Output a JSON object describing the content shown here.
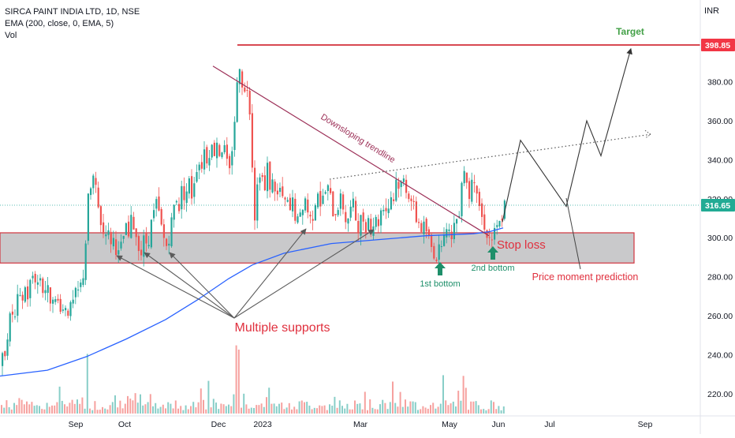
{
  "legend": {
    "title": "SIRCA PAINT INDIA LTD, 1D, NSE",
    "ema": "EMA (200, close, 0, EMA, 5)",
    "vol": "Vol"
  },
  "currency": "INR",
  "chart_data": {
    "type": "candlestick",
    "title": "SIRCA PAINT INDIA LTD, 1D, NSE",
    "x_ticks": [
      "Sep",
      "Oct",
      "Dec",
      "2023",
      "Mar",
      "May",
      "Jun",
      "Jul",
      "Sep"
    ],
    "y_ticks": [
      "220.00",
      "240.00",
      "260.00",
      "280.00",
      "300.00",
      "320.00",
      "340.00",
      "360.00",
      "380.00"
    ],
    "ylim": [
      212,
      408
    ],
    "price_labels": {
      "target": {
        "value": 398.85,
        "text": "398.85",
        "color": "#f23645"
      },
      "last": {
        "value": 316.65,
        "text": "316.65",
        "color": "#22ab94"
      }
    },
    "close_path": [
      [
        0,
        235
      ],
      [
        5,
        242
      ],
      [
        10,
        255
      ],
      [
        14,
        262
      ],
      [
        18,
        258
      ],
      [
        22,
        270
      ],
      [
        26,
        265
      ],
      [
        30,
        275
      ],
      [
        34,
        270
      ],
      [
        38,
        278
      ],
      [
        42,
        282
      ],
      [
        46,
        276
      ],
      [
        50,
        280
      ],
      [
        54,
        272
      ],
      [
        58,
        275
      ],
      [
        62,
        268
      ],
      [
        66,
        272
      ],
      [
        70,
        265
      ],
      [
        74,
        268
      ],
      [
        78,
        262
      ],
      [
        82,
        266
      ],
      [
        86,
        262
      ],
      [
        90,
        264
      ],
      [
        94,
        270
      ],
      [
        98,
        272
      ],
      [
        102,
        276
      ],
      [
        106,
        285
      ],
      [
        110,
        318
      ],
      [
        114,
        325
      ],
      [
        118,
        332
      ],
      [
        122,
        318
      ],
      [
        126,
        310
      ],
      [
        130,
        302
      ],
      [
        134,
        306
      ],
      [
        138,
        298
      ],
      [
        142,
        300
      ],
      [
        146,
        295
      ],
      [
        150,
        290
      ],
      [
        154,
        298
      ],
      [
        158,
        305
      ],
      [
        162,
        300
      ],
      [
        166,
        310
      ],
      [
        170,
        304
      ],
      [
        174,
        298
      ],
      [
        178,
        292
      ],
      [
        182,
        300
      ],
      [
        186,
        296
      ],
      [
        190,
        306
      ],
      [
        194,
        312
      ],
      [
        198,
        318
      ],
      [
        202,
        308
      ],
      [
        206,
        300
      ],
      [
        210,
        296
      ],
      [
        214,
        302
      ],
      [
        218,
        312
      ],
      [
        222,
        322
      ],
      [
        226,
        316
      ],
      [
        230,
        326
      ],
      [
        234,
        320
      ],
      [
        238,
        330
      ],
      [
        242,
        322
      ],
      [
        246,
        332
      ],
      [
        250,
        340
      ],
      [
        254,
        336
      ],
      [
        258,
        345
      ],
      [
        262,
        340
      ],
      [
        266,
        348
      ],
      [
        270,
        343
      ],
      [
        274,
        350
      ],
      [
        278,
        342
      ],
      [
        282,
        349
      ],
      [
        286,
        338
      ],
      [
        290,
        333
      ],
      [
        294,
        350
      ],
      [
        298,
        368
      ],
      [
        302,
        392
      ],
      [
        306,
        380
      ],
      [
        310,
        372
      ],
      [
        314,
        382
      ],
      [
        318,
        345
      ],
      [
        322,
        312
      ],
      [
        326,
        330
      ],
      [
        330,
        338
      ],
      [
        334,
        320
      ],
      [
        338,
        336
      ],
      [
        342,
        325
      ],
      [
        346,
        330
      ],
      [
        350,
        320
      ],
      [
        354,
        325
      ],
      [
        358,
        316
      ],
      [
        362,
        320
      ],
      [
        366,
        312
      ],
      [
        370,
        318
      ],
      [
        374,
        310
      ],
      [
        378,
        306
      ],
      [
        382,
        316
      ],
      [
        386,
        320
      ],
      [
        390,
        312
      ],
      [
        394,
        308
      ],
      [
        398,
        318
      ],
      [
        402,
        325
      ],
      [
        406,
        316
      ],
      [
        410,
        322
      ],
      [
        414,
        326
      ],
      [
        418,
        320
      ],
      [
        422,
        312
      ],
      [
        426,
        315
      ],
      [
        430,
        320
      ],
      [
        434,
        316
      ],
      [
        438,
        308
      ],
      [
        442,
        312
      ],
      [
        446,
        318
      ],
      [
        450,
        310
      ],
      [
        454,
        305
      ],
      [
        458,
        312
      ],
      [
        462,
        306
      ],
      [
        466,
        310
      ],
      [
        470,
        304
      ],
      [
        474,
        310
      ],
      [
        478,
        307
      ],
      [
        482,
        314
      ],
      [
        486,
        318
      ],
      [
        490,
        312
      ],
      [
        494,
        322
      ],
      [
        498,
        320
      ],
      [
        502,
        332
      ],
      [
        506,
        325
      ],
      [
        510,
        330
      ],
      [
        514,
        326
      ],
      [
        518,
        322
      ],
      [
        522,
        318
      ],
      [
        526,
        310
      ],
      [
        530,
        308
      ],
      [
        534,
        304
      ],
      [
        538,
        306
      ],
      [
        542,
        300
      ],
      [
        546,
        295
      ],
      [
        550,
        292
      ],
      [
        554,
        290
      ],
      [
        558,
        298
      ],
      [
        562,
        305
      ],
      [
        566,
        302
      ],
      [
        570,
        300
      ],
      [
        574,
        306
      ],
      [
        578,
        310
      ],
      [
        582,
        316
      ],
      [
        586,
        340
      ],
      [
        590,
        330
      ],
      [
        594,
        322
      ],
      [
        598,
        336
      ],
      [
        602,
        328
      ],
      [
        606,
        318
      ],
      [
        610,
        310
      ],
      [
        614,
        306
      ],
      [
        618,
        300
      ],
      [
        622,
        299
      ],
      [
        626,
        302
      ],
      [
        630,
        305
      ],
      [
        634,
        308
      ],
      [
        638,
        316.65
      ]
    ],
    "volume_spikes": [
      [
        110,
        0.84
      ],
      [
        263,
        0.46
      ],
      [
        299,
        0.96
      ],
      [
        302,
        0.9
      ],
      [
        498,
        0.45
      ],
      [
        562,
        0.54
      ],
      [
        586,
        0.53
      ]
    ],
    "ema_path": [
      [
        0,
        229
      ],
      [
        60,
        232
      ],
      [
        110,
        239
      ],
      [
        160,
        248
      ],
      [
        210,
        258
      ],
      [
        250,
        268
      ],
      [
        290,
        279
      ],
      [
        320,
        286
      ],
      [
        360,
        292
      ],
      [
        420,
        297
      ],
      [
        480,
        299
      ],
      [
        540,
        301
      ],
      [
        600,
        302
      ],
      [
        620,
        303
      ],
      [
        638,
        305
      ]
    ],
    "support_zone": [
      287,
      302.5
    ],
    "target_line": 398.85,
    "downtrend": [
      [
        270,
        388
      ],
      [
        620,
        301
      ]
    ],
    "rising_dotted": [
      [
        418,
        330
      ],
      [
        825,
        353
      ]
    ],
    "prediction_path": [
      [
        637,
        308
      ],
      [
        660,
        350
      ],
      [
        718,
        316
      ],
      [
        744,
        360
      ],
      [
        762,
        342
      ],
      [
        800,
        397
      ]
    ],
    "annotations": {
      "target": "Target",
      "downsloping": "Downsloping trendline",
      "stop_loss": "Stop loss",
      "first_bottom": "1st bottom",
      "second_bottom": "2nd bottom",
      "prediction": "Price moment prediction",
      "supports": "Multiple supports"
    },
    "colors": {
      "up": "#26a69a",
      "down": "#ef5350",
      "ema": "#2962ff",
      "zone_fill": "#c9c9cb",
      "zone_border": "#d1343f",
      "target_line": "#d32f3a",
      "trendline": "#9c2f57",
      "annotation_red": "#e0303e",
      "annotation_green": "#1e8f6a",
      "target_text": "#43a047"
    }
  }
}
